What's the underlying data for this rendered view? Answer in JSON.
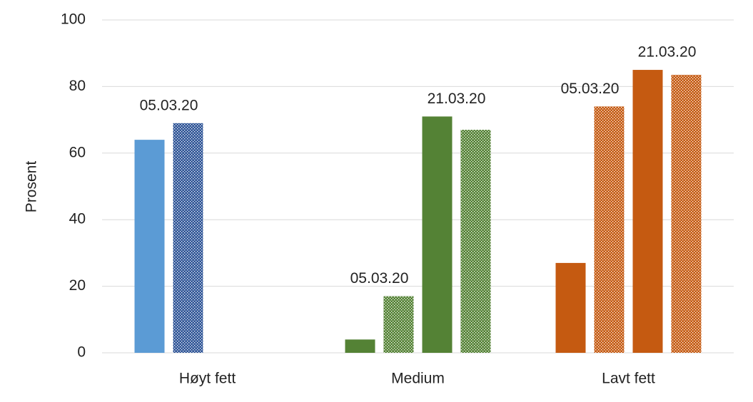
{
  "chart_data": {
    "type": "bar",
    "categories": [
      "Høyt fett",
      "Medium",
      "Lavt fett"
    ],
    "y_label": "Prosent",
    "ylim": [
      0,
      100
    ],
    "yticks": [
      0,
      20,
      40,
      60,
      80,
      100
    ],
    "grid": true,
    "series": [
      {
        "colors": [
          "#5b9bd5",
          "#548235",
          "#c55a11"
        ],
        "pattern": false,
        "values": [
          64,
          4,
          27
        ]
      },
      {
        "colors": [
          "#2f5597",
          "#548235",
          "#c55a11"
        ],
        "pattern": true,
        "values": [
          69,
          17,
          74
        ]
      },
      {
        "colors": [
          "#5b9bd5",
          "#548235",
          "#c55a11"
        ],
        "pattern": false,
        "values": [
          null,
          71,
          85
        ]
      },
      {
        "colors": [
          "#2f5597",
          "#548235",
          "#c55a11"
        ],
        "pattern": true,
        "values": [
          null,
          67,
          83.5
        ]
      }
    ],
    "annotations": [
      "05.03.20",
      "05.03.20",
      "21.03.20",
      "05.03.20",
      "21.03.20"
    ]
  }
}
